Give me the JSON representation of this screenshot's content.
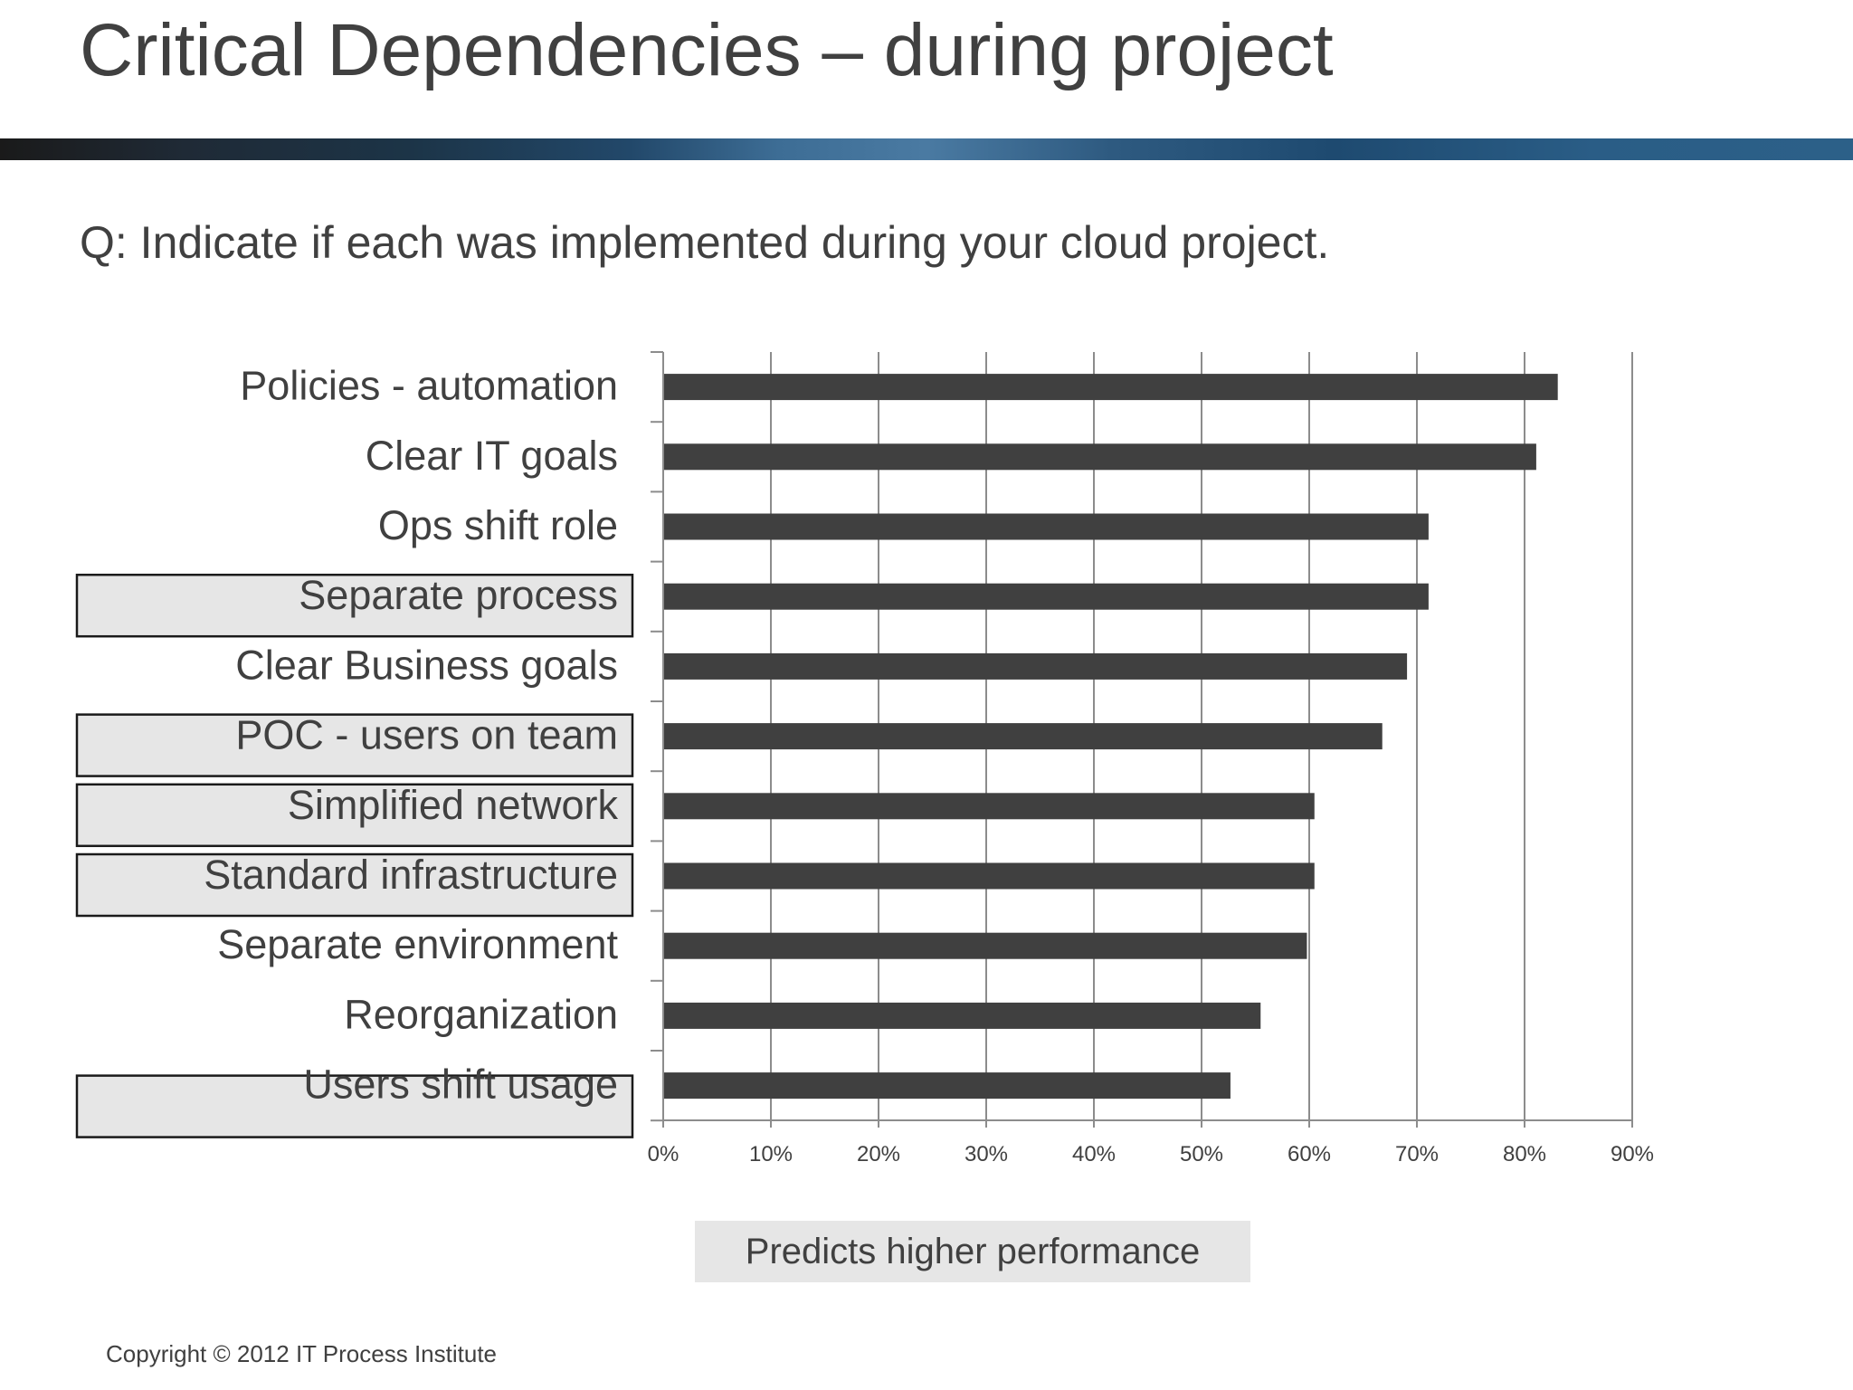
{
  "slide": {
    "title": "Critical Dependencies – during project",
    "question": "Q: Indicate if each was implemented during your cloud project.",
    "copyright": "Copyright © 2012 IT Process Institute"
  },
  "legend": {
    "label": "Predicts higher performance",
    "color": "#e6e6e6"
  },
  "colors": {
    "bar": "#404040",
    "grid": "#8c8c8c",
    "text": "#404040",
    "highlight_fill": "#e6e6e6",
    "highlight_border": "#1a1a1a"
  },
  "chart_data": {
    "type": "bar",
    "orientation": "horizontal",
    "title": "",
    "xlabel": "",
    "ylabel": "",
    "categories": [
      "Policies - automation",
      "Clear IT goals",
      "Ops shift role",
      "Separate process",
      "Clear Business goals",
      "POC - users on team",
      "Simplified network",
      "Standard infrastructure",
      "Separate environment",
      "Reorganization",
      "Users shift usage"
    ],
    "values": [
      83,
      81,
      71,
      71,
      69,
      66.7,
      60.4,
      60.4,
      59.7,
      55.4,
      52.6
    ],
    "highlighted": [
      false,
      false,
      false,
      true,
      false,
      true,
      true,
      true,
      false,
      false,
      true
    ],
    "xlim": [
      0,
      90
    ],
    "x_ticks": [
      "0%",
      "10%",
      "20%",
      "30%",
      "40%",
      "50%",
      "60%",
      "70%",
      "80%",
      "90%"
    ],
    "grid": true,
    "legend_placement": "bottom-center"
  }
}
